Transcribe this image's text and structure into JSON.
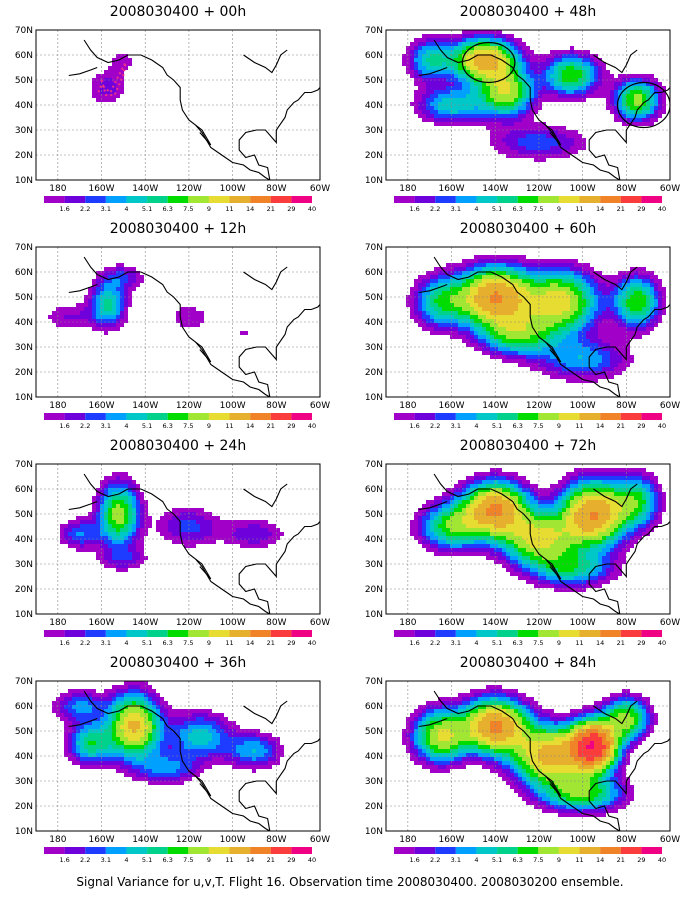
{
  "caption": "Signal Variance for u,v,T. Flight 16. Observation time 2008030400. 2008030200 ensemble.",
  "lat_labels": [
    "10N",
    "20N",
    "30N",
    "40N",
    "50N",
    "60N",
    "70N"
  ],
  "lon_labels": [
    "180",
    "160W",
    "140W",
    "120W",
    "100W",
    "80W",
    "60W"
  ],
  "colorbar": {
    "labels": [
      "1.6",
      "2.2",
      "3.1",
      "4",
      "5.1",
      "6.3",
      "7.5",
      "9",
      "11",
      "14",
      "21",
      "29",
      "40"
    ],
    "colors": [
      "#ffffff",
      "#a000c8",
      "#6e00dc",
      "#1e3cff",
      "#00a0ff",
      "#00c8c8",
      "#00d28c",
      "#00dc00",
      "#a0e632",
      "#e6dc32",
      "#e6af2d",
      "#f08228",
      "#fa3c3c",
      "#f00082"
    ]
  },
  "panels": [
    {
      "title": "2008030400 + 00h",
      "intensity": 0.35,
      "blobs": [
        [
          -157,
          47,
          9,
          7,
          0.7
        ],
        [
          -150,
          58,
          8,
          5,
          0.4
        ],
        [
          -175,
          40,
          12,
          5,
          0.25
        ],
        [
          -110,
          45,
          8,
          6,
          0.2
        ],
        [
          -92,
          38,
          6,
          5,
          0.15
        ]
      ],
      "dotted_track": true,
      "circles": []
    },
    {
      "title": "2008030400 + 48h",
      "intensity": 1.5,
      "blobs": [
        [
          -145,
          58,
          14,
          8,
          0.85
        ],
        [
          -135,
          45,
          12,
          9,
          0.6
        ],
        [
          -105,
          52,
          12,
          8,
          0.5
        ],
        [
          -75,
          42,
          10,
          8,
          0.55
        ],
        [
          -160,
          40,
          15,
          7,
          0.35
        ],
        [
          -120,
          25,
          22,
          7,
          0.22
        ],
        [
          -170,
          58,
          10,
          8,
          0.35
        ]
      ],
      "dotted_track": false,
      "circles": [
        [
          -143,
          57,
          12,
          8
        ],
        [
          -72,
          40,
          12,
          9
        ]
      ]
    },
    {
      "title": "2008030400 + 12h",
      "intensity": 0.6,
      "blobs": [
        [
          -157,
          47,
          8,
          9,
          0.95
        ],
        [
          -150,
          58,
          10,
          5,
          0.45
        ],
        [
          -175,
          42,
          12,
          6,
          0.35
        ],
        [
          -120,
          42,
          14,
          8,
          0.25
        ],
        [
          -95,
          35,
          12,
          6,
          0.2
        ]
      ],
      "dotted_track": false,
      "circles": []
    },
    {
      "title": "2008030400 + 60h",
      "intensity": 1.7,
      "blobs": [
        [
          -140,
          50,
          16,
          11,
          0.85
        ],
        [
          -110,
          48,
          16,
          12,
          0.6
        ],
        [
          -130,
          35,
          16,
          8,
          0.4
        ],
        [
          -75,
          48,
          10,
          10,
          0.45
        ],
        [
          -165,
          48,
          12,
          10,
          0.35
        ],
        [
          -100,
          25,
          20,
          8,
          0.25
        ]
      ],
      "dotted_track": false,
      "circles": []
    },
    {
      "title": "2008030400 + 24h",
      "intensity": 0.9,
      "blobs": [
        [
          -152,
          50,
          9,
          12,
          0.95
        ],
        [
          -170,
          42,
          9,
          6,
          0.4
        ],
        [
          -120,
          45,
          14,
          8,
          0.35
        ],
        [
          -90,
          42,
          14,
          6,
          0.3
        ],
        [
          -150,
          32,
          12,
          5,
          0.25
        ]
      ],
      "dotted_track": false,
      "circles": []
    },
    {
      "title": "2008030400 + 72h",
      "intensity": 1.8,
      "blobs": [
        [
          -140,
          52,
          14,
          10,
          0.8
        ],
        [
          -95,
          50,
          14,
          12,
          0.8
        ],
        [
          -120,
          40,
          16,
          10,
          0.55
        ],
        [
          -160,
          45,
          14,
          9,
          0.4
        ],
        [
          -105,
          28,
          18,
          7,
          0.3
        ],
        [
          -75,
          55,
          10,
          10,
          0.35
        ]
      ],
      "dotted_track": false,
      "circles": []
    },
    {
      "title": "2008030400 + 36h",
      "intensity": 1.25,
      "blobs": [
        [
          -145,
          52,
          11,
          12,
          0.95
        ],
        [
          -165,
          45,
          10,
          8,
          0.5
        ],
        [
          -115,
          48,
          14,
          9,
          0.4
        ],
        [
          -90,
          42,
          12,
          7,
          0.35
        ],
        [
          -130,
          35,
          14,
          6,
          0.3
        ],
        [
          -170,
          60,
          12,
          6,
          0.3
        ]
      ],
      "dotted_track": false,
      "circles": []
    },
    {
      "title": "2008030400 + 84h",
      "intensity": 2.1,
      "blobs": [
        [
          -95,
          44,
          10,
          9,
          1.0
        ],
        [
          -140,
          52,
          14,
          10,
          0.7
        ],
        [
          -115,
          40,
          16,
          11,
          0.6
        ],
        [
          -165,
          48,
          12,
          10,
          0.45
        ],
        [
          -80,
          55,
          10,
          8,
          0.4
        ],
        [
          -100,
          25,
          18,
          7,
          0.35
        ]
      ],
      "dotted_track": false,
      "circles": []
    }
  ]
}
